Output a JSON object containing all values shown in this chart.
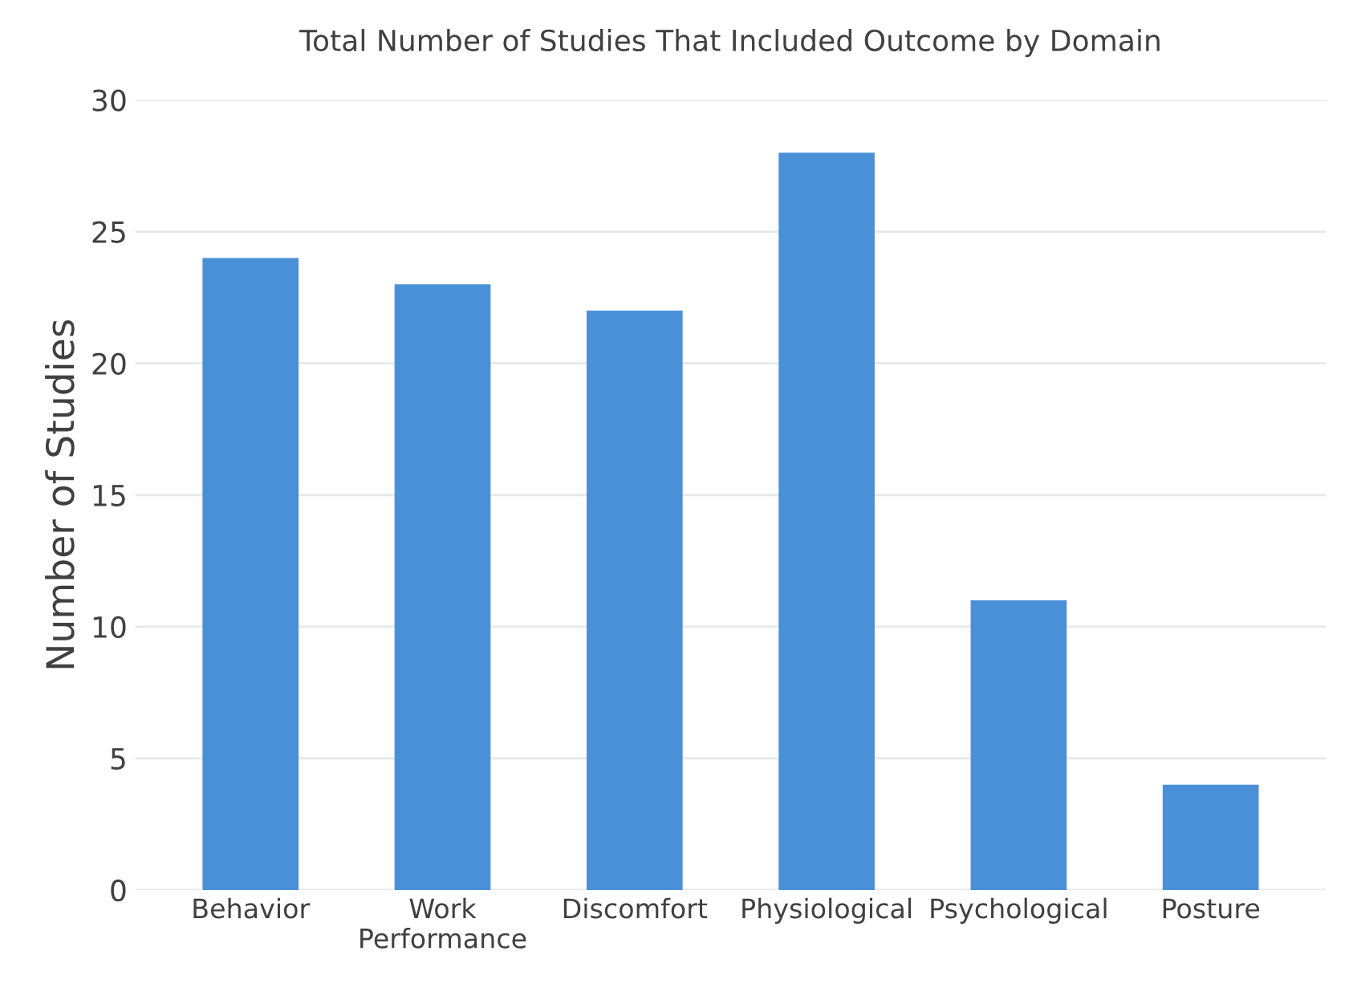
{
  "chart_data": {
    "type": "bar",
    "title": "Total Number of Studies That Included Outcome by Domain",
    "ylabel": "Number of Studies",
    "categories": [
      "Behavior",
      "Work\nPerformance",
      "Discomfort",
      "Physiological",
      "Psychological",
      "Posture"
    ],
    "values": [
      24,
      23,
      22,
      28,
      11,
      4
    ],
    "color": "#4a90d9",
    "ylim": [
      0,
      30
    ],
    "yticks": [
      0,
      5,
      10,
      15,
      20,
      25,
      30
    ],
    "grid": "y",
    "legend": false
  }
}
